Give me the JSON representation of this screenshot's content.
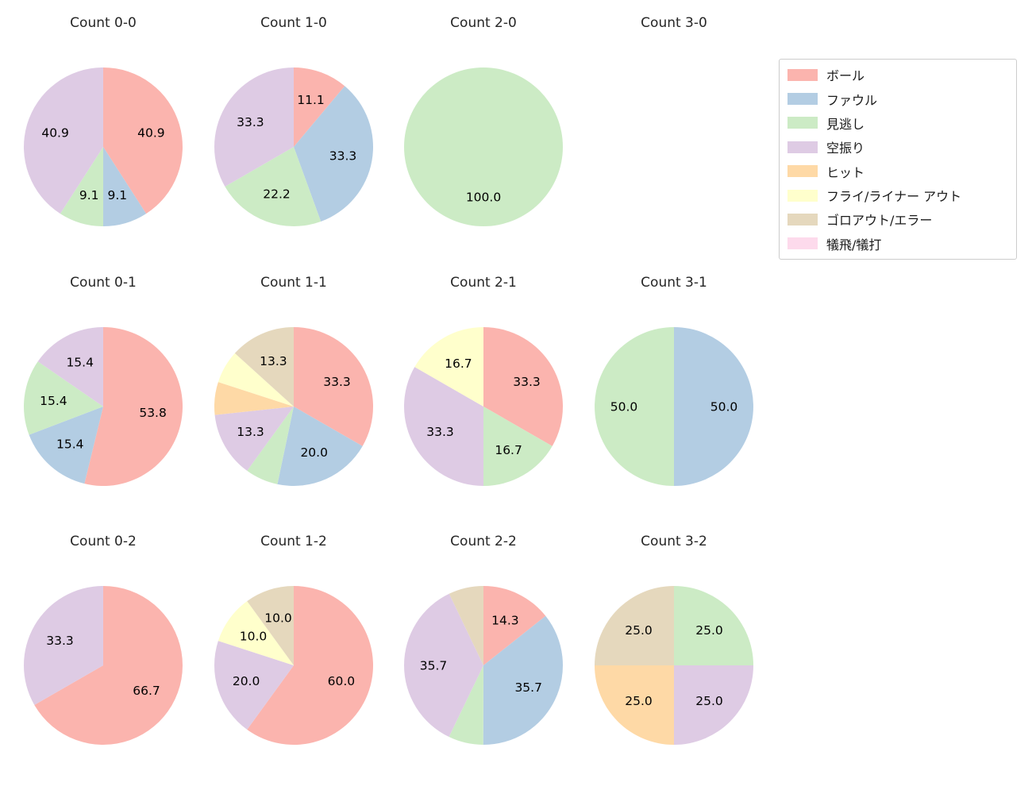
{
  "colors": {
    "ボール": "#fbb4ae",
    "ファウル": "#b3cde3",
    "見逃し": "#ccebc5",
    "空振り": "#decbe4",
    "ヒット": "#fed9a6",
    "フライ/ライナー アウト": "#ffffcc",
    "ゴロアウト/エラー": "#e5d8bd",
    "犠飛/犠打": "#fddaec"
  },
  "legend": {
    "items": [
      {
        "label": "ボール",
        "color": "#fbb4ae"
      },
      {
        "label": "ファウル",
        "color": "#b3cde3"
      },
      {
        "label": "見逃し",
        "color": "#ccebc5"
      },
      {
        "label": "空振り",
        "color": "#decbe4"
      },
      {
        "label": "ヒット",
        "color": "#fed9a6"
      },
      {
        "label": "フライ/ライナー アウト",
        "color": "#ffffcc"
      },
      {
        "label": "ゴロアウト/エラー",
        "color": "#e5d8bd"
      },
      {
        "label": "犠飛/犠打",
        "color": "#fddaec"
      }
    ]
  },
  "chart_data": [
    {
      "type": "pie",
      "title": "Count 0-0",
      "start_angle_deg": 90,
      "direction": "clockwise",
      "slices": [
        {
          "category": "ボール",
          "value": 40.9,
          "label": "40.9"
        },
        {
          "category": "ファウル",
          "value": 9.1,
          "label": "9.1"
        },
        {
          "category": "見逃し",
          "value": 9.1,
          "label": "9.1"
        },
        {
          "category": "空振り",
          "value": 40.9,
          "label": "40.9"
        }
      ]
    },
    {
      "type": "pie",
      "title": "Count 1-0",
      "start_angle_deg": 90,
      "direction": "clockwise",
      "slices": [
        {
          "category": "ボール",
          "value": 11.1,
          "label": "11.1"
        },
        {
          "category": "ファウル",
          "value": 33.3,
          "label": "33.3"
        },
        {
          "category": "見逃し",
          "value": 22.2,
          "label": "22.2"
        },
        {
          "category": "空振り",
          "value": 33.3,
          "label": "33.3"
        }
      ]
    },
    {
      "type": "pie",
      "title": "Count 2-0",
      "start_angle_deg": 90,
      "direction": "clockwise",
      "slices": [
        {
          "category": "見逃し",
          "value": 100.0,
          "label": "100.0"
        }
      ]
    },
    {
      "type": "pie",
      "title": "Count 3-0",
      "start_angle_deg": 90,
      "direction": "clockwise",
      "slices": []
    },
    {
      "type": "pie",
      "title": "Count 0-1",
      "start_angle_deg": 90,
      "direction": "clockwise",
      "slices": [
        {
          "category": "ボール",
          "value": 53.8,
          "label": "53.8"
        },
        {
          "category": "ファウル",
          "value": 15.4,
          "label": "15.4"
        },
        {
          "category": "見逃し",
          "value": 15.4,
          "label": "15.4"
        },
        {
          "category": "空振り",
          "value": 15.4,
          "label": "15.4"
        }
      ]
    },
    {
      "type": "pie",
      "title": "Count 1-1",
      "start_angle_deg": 90,
      "direction": "clockwise",
      "slices": [
        {
          "category": "ボール",
          "value": 33.3,
          "label": "33.3"
        },
        {
          "category": "ファウル",
          "value": 20.0,
          "label": "20.0"
        },
        {
          "category": "見逃し",
          "value": 6.7,
          "label": ""
        },
        {
          "category": "空振り",
          "value": 13.3,
          "label": "13.3"
        },
        {
          "category": "ヒット",
          "value": 6.7,
          "label": ""
        },
        {
          "category": "フライ/ライナー アウト",
          "value": 6.7,
          "label": ""
        },
        {
          "category": "ゴロアウト/エラー",
          "value": 13.3,
          "label": "13.3"
        }
      ]
    },
    {
      "type": "pie",
      "title": "Count 2-1",
      "start_angle_deg": 90,
      "direction": "clockwise",
      "slices": [
        {
          "category": "ボール",
          "value": 33.3,
          "label": "33.3"
        },
        {
          "category": "見逃し",
          "value": 16.7,
          "label": "16.7"
        },
        {
          "category": "空振り",
          "value": 33.3,
          "label": "33.3"
        },
        {
          "category": "フライ/ライナー アウト",
          "value": 16.7,
          "label": "16.7"
        }
      ]
    },
    {
      "type": "pie",
      "title": "Count 3-1",
      "start_angle_deg": 90,
      "direction": "clockwise",
      "slices": [
        {
          "category": "ファウル",
          "value": 50.0,
          "label": "50.0"
        },
        {
          "category": "見逃し",
          "value": 50.0,
          "label": "50.0"
        }
      ]
    },
    {
      "type": "pie",
      "title": "Count 0-2",
      "start_angle_deg": 90,
      "direction": "clockwise",
      "slices": [
        {
          "category": "ボール",
          "value": 66.7,
          "label": "66.7"
        },
        {
          "category": "空振り",
          "value": 33.3,
          "label": "33.3"
        }
      ]
    },
    {
      "type": "pie",
      "title": "Count 1-2",
      "start_angle_deg": 90,
      "direction": "clockwise",
      "slices": [
        {
          "category": "ボール",
          "value": 60.0,
          "label": "60.0"
        },
        {
          "category": "空振り",
          "value": 20.0,
          "label": "20.0"
        },
        {
          "category": "フライ/ライナー アウト",
          "value": 10.0,
          "label": "10.0"
        },
        {
          "category": "ゴロアウト/エラー",
          "value": 10.0,
          "label": "10.0"
        }
      ]
    },
    {
      "type": "pie",
      "title": "Count 2-2",
      "start_angle_deg": 90,
      "direction": "clockwise",
      "slices": [
        {
          "category": "ボール",
          "value": 14.3,
          "label": "14.3"
        },
        {
          "category": "ファウル",
          "value": 35.7,
          "label": "35.7"
        },
        {
          "category": "見逃し",
          "value": 7.1,
          "label": ""
        },
        {
          "category": "空振り",
          "value": 35.7,
          "label": "35.7"
        },
        {
          "category": "ゴロアウト/エラー",
          "value": 7.1,
          "label": ""
        }
      ]
    },
    {
      "type": "pie",
      "title": "Count 3-2",
      "start_angle_deg": 90,
      "direction": "clockwise",
      "slices": [
        {
          "category": "見逃し",
          "value": 25.0,
          "label": "25.0"
        },
        {
          "category": "空振り",
          "value": 25.0,
          "label": "25.0"
        },
        {
          "category": "ヒット",
          "value": 25.0,
          "label": "25.0"
        },
        {
          "category": "ゴロアウト/エラー",
          "value": 25.0,
          "label": "25.0"
        }
      ]
    }
  ]
}
